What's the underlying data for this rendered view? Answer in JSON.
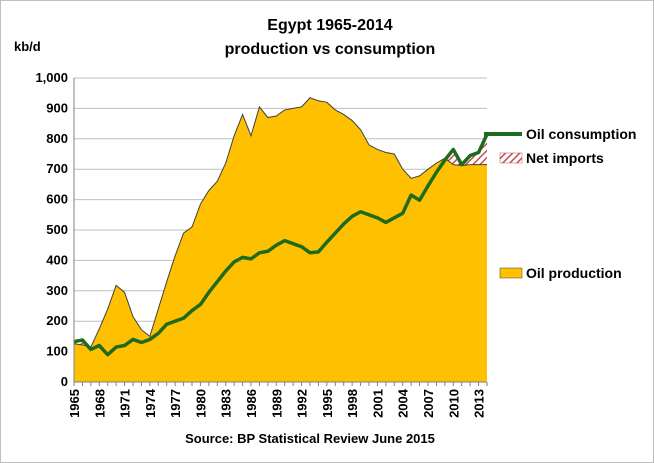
{
  "chart_data": {
    "type": "area",
    "title_line1": "Egypt 1965-2014",
    "title_line2": "production vs consumption",
    "ylabel": "kb/d",
    "source": "Source: BP Statistical Review  June 2015",
    "ylim": [
      0,
      1000
    ],
    "yticks": [
      "0",
      "100",
      "200",
      "300",
      "400",
      "500",
      "600",
      "700",
      "800",
      "900",
      "1,000"
    ],
    "xticks": [
      "1965",
      "1968",
      "1971",
      "1974",
      "1977",
      "1980",
      "1983",
      "1986",
      "1989",
      "1992",
      "1995",
      "1998",
      "2001",
      "2004",
      "2007",
      "2010",
      "2013"
    ],
    "grid": true,
    "legend_placement": "right",
    "colors": {
      "production": "#FFC000",
      "production_outline": "#404040",
      "consumption": "#1E6B1E",
      "net_imports": "#C0504D",
      "grid": "#bfbfbf"
    },
    "x": [
      1965,
      1966,
      1967,
      1968,
      1969,
      1970,
      1971,
      1972,
      1973,
      1974,
      1975,
      1976,
      1977,
      1978,
      1979,
      1980,
      1981,
      1982,
      1983,
      1984,
      1985,
      1986,
      1987,
      1988,
      1989,
      1990,
      1991,
      1992,
      1993,
      1994,
      1995,
      1996,
      1997,
      1998,
      1999,
      2000,
      2001,
      2002,
      2003,
      2004,
      2005,
      2006,
      2007,
      2008,
      2009,
      2010,
      2011,
      2012,
      2013,
      2014
    ],
    "series": [
      {
        "name": "Oil production",
        "values": [
          126,
          122,
          115,
          175,
          240,
          318,
          295,
          215,
          172,
          150,
          240,
          330,
          415,
          490,
          510,
          585,
          630,
          660,
          720,
          810,
          880,
          810,
          905,
          870,
          875,
          895,
          900,
          905,
          935,
          925,
          920,
          895,
          880,
          860,
          830,
          780,
          765,
          755,
          750,
          700,
          670,
          678,
          700,
          720,
          736,
          715,
          712,
          715,
          715,
          715
        ]
      },
      {
        "name": "Oil consumption",
        "values": [
          133,
          138,
          107,
          120,
          90,
          115,
          120,
          140,
          130,
          140,
          160,
          190,
          200,
          210,
          235,
          255,
          295,
          330,
          365,
          395,
          410,
          405,
          425,
          430,
          450,
          465,
          455,
          445,
          425,
          428,
          460,
          490,
          520,
          545,
          560,
          550,
          540,
          525,
          540,
          555,
          615,
          598,
          645,
          690,
          730,
          765,
          715,
          745,
          755,
          815
        ]
      },
      {
        "name": "Net imports",
        "values": [
          7,
          16,
          0,
          0,
          0,
          0,
          0,
          0,
          0,
          0,
          0,
          0,
          0,
          0,
          0,
          0,
          0,
          0,
          0,
          0,
          0,
          0,
          0,
          0,
          0,
          0,
          0,
          0,
          0,
          0,
          0,
          0,
          0,
          0,
          0,
          0,
          0,
          0,
          0,
          0,
          0,
          0,
          0,
          0,
          0,
          50,
          3,
          30,
          40,
          100
        ]
      }
    ]
  }
}
